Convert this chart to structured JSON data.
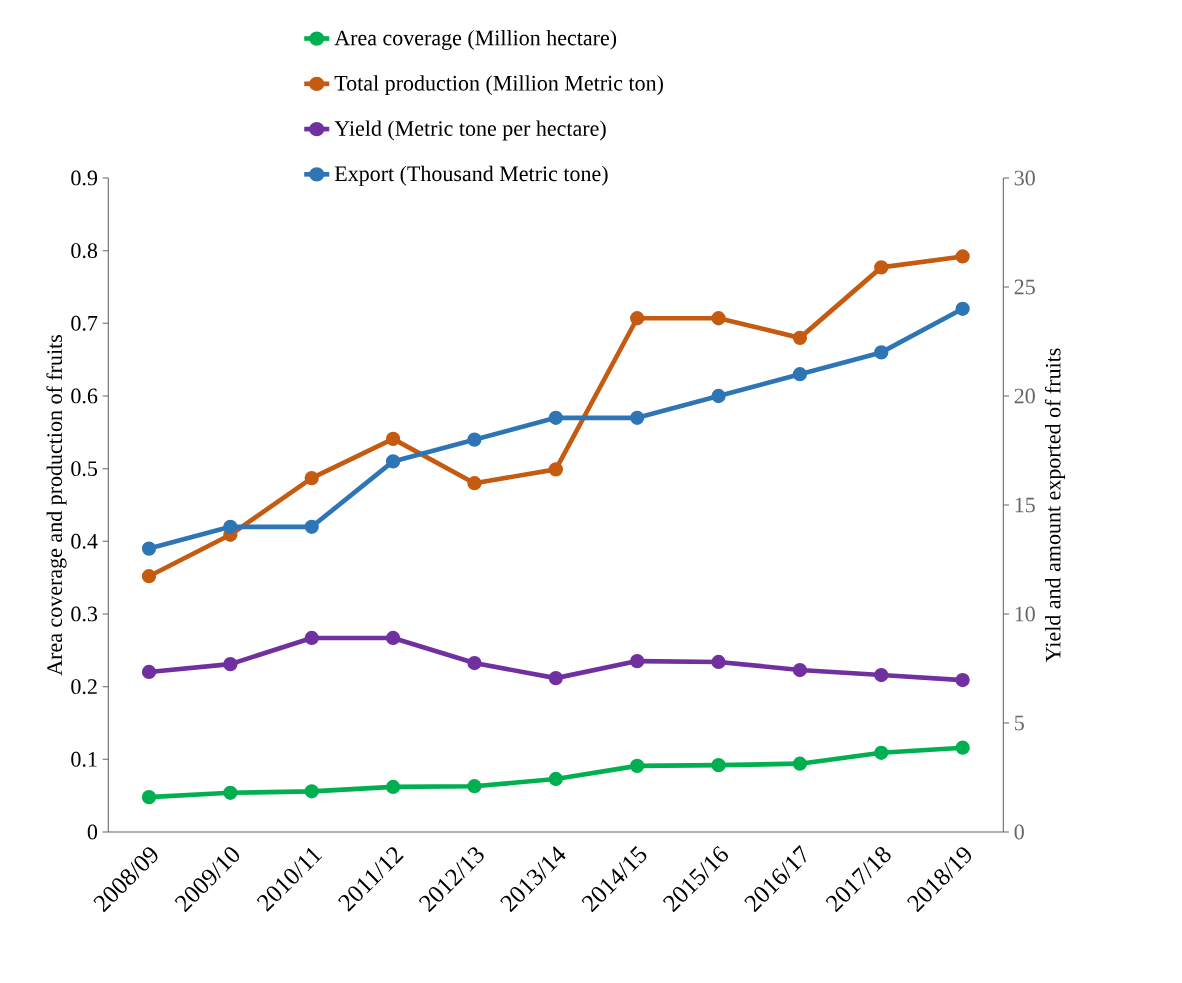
{
  "chart_data": {
    "type": "line",
    "categories": [
      "2008/09",
      "2009/10",
      "2010/11",
      "2011/12",
      "2012/13",
      "2013/14",
      "2014/15",
      "2015/16",
      "2016/17",
      "2017/18",
      "2018/19"
    ],
    "series": [
      {
        "name": "Area coverage (Million hectare)",
        "color": "#00b050",
        "values": [
          0.048,
          0.054,
          0.056,
          0.062,
          0.063,
          0.073,
          0.091,
          0.092,
          0.094,
          0.109,
          0.116
        ]
      },
      {
        "name": "Total production (Million Metric ton)",
        "color": "#c55a11",
        "values": [
          0.352,
          0.409,
          0.487,
          0.541,
          0.48,
          0.499,
          0.707,
          0.707,
          0.68,
          0.777,
          0.792
        ]
      },
      {
        "name": "Yield (Metric tone per hectare)",
        "color": "#7030a0",
        "axis": "y2",
        "values": [
          7.34,
          7.7,
          8.9,
          8.9,
          7.75,
          7.06,
          7.84,
          7.8,
          7.43,
          7.2,
          6.97
        ]
      },
      {
        "name": "Export (Thousand Metric tone)",
        "color": "#2e75b6",
        "axis": "y2",
        "values": [
          13,
          14,
          14,
          17,
          18,
          19,
          19,
          20,
          21,
          22,
          24
        ]
      }
    ],
    "ylabel": "Area coverage and production of fruits",
    "y2label": "Yield and amount exported of fruits",
    "ylim": [
      0,
      0.9
    ],
    "yticks": [
      0,
      0.1,
      0.2,
      0.3,
      0.4,
      0.5,
      0.6,
      0.7,
      0.8,
      0.9
    ],
    "y2lim": [
      0,
      30
    ],
    "y2ticks": [
      0,
      5,
      10,
      15,
      20,
      25,
      30
    ],
    "legend": "top",
    "marker": "circle",
    "line_style": "solid",
    "grid": false
  }
}
